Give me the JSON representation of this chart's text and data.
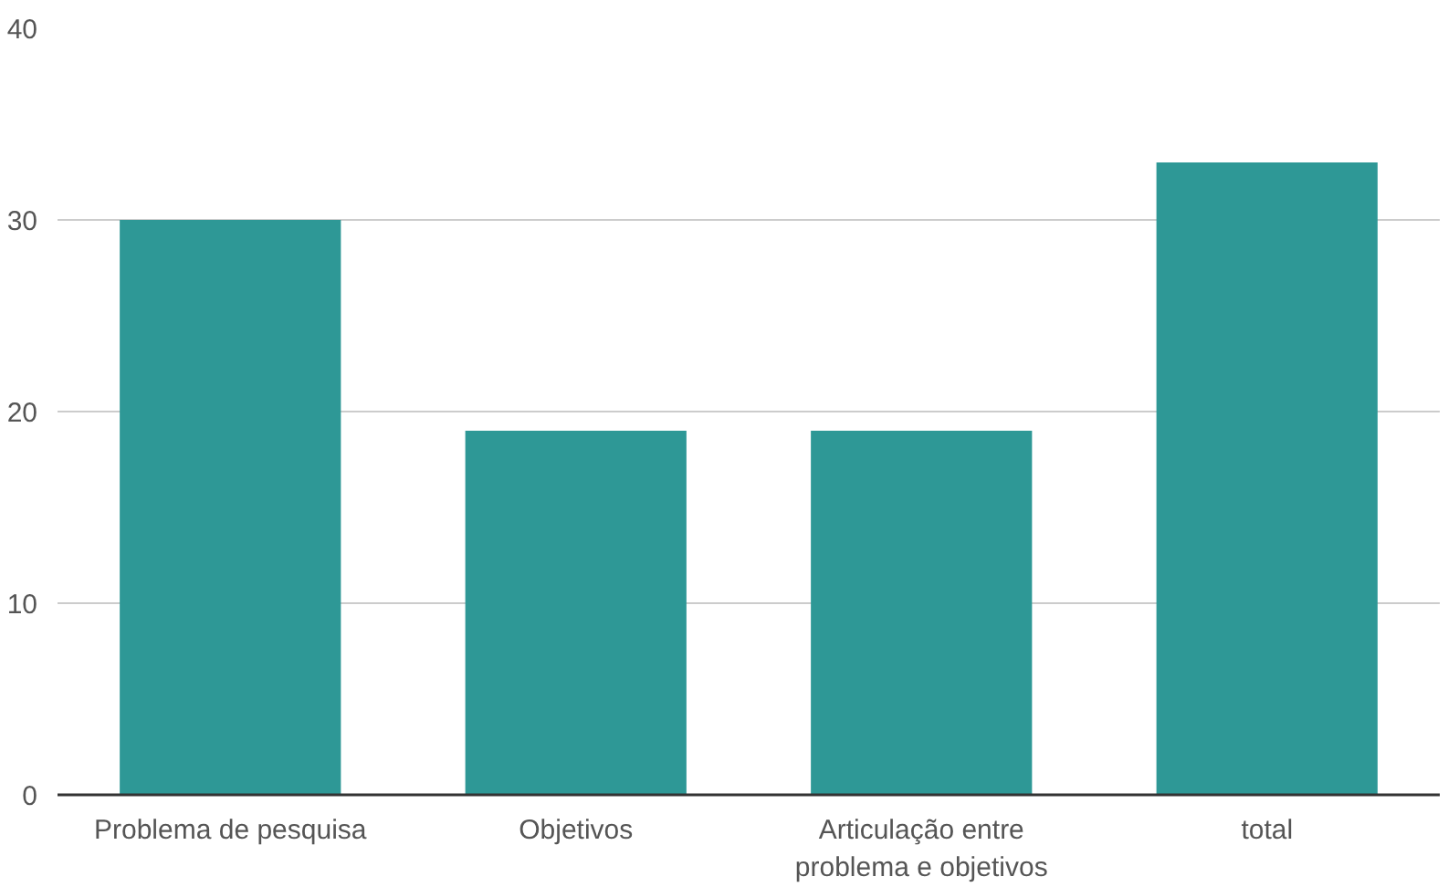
{
  "chart_data": {
    "type": "bar",
    "categories": [
      "Problema de pesquisa",
      "Objetivos",
      "Articulação entre problema e objetivos",
      "total"
    ],
    "values": [
      30,
      19,
      19,
      33
    ],
    "color": "#2e9896",
    "ylim": [
      0,
      40
    ],
    "yticks": [
      0,
      10,
      20,
      30,
      40
    ],
    "grid": "y"
  }
}
